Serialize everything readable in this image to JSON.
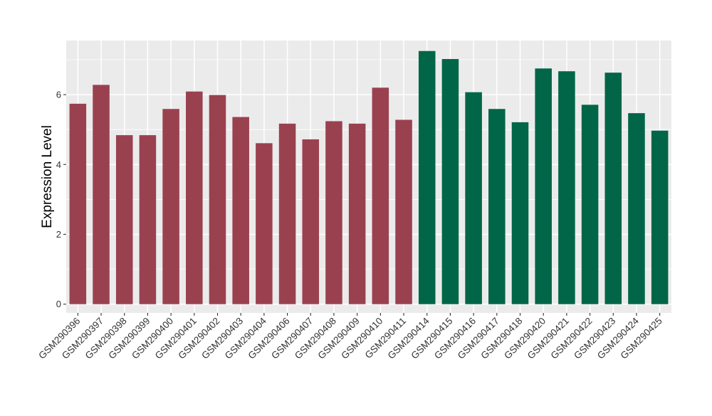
{
  "chart_data": {
    "type": "bar",
    "title": "",
    "xlabel": "",
    "ylabel": "Expression Level",
    "ylim": [
      -0.25,
      7.55
    ],
    "yticks": [
      0,
      2,
      4,
      6
    ],
    "grid": true,
    "legend": "none",
    "categories": [
      "GSM290396",
      "GSM290397",
      "GSM290398",
      "GSM290399",
      "GSM290400",
      "GSM290401",
      "GSM290402",
      "GSM290403",
      "GSM290404",
      "GSM290406",
      "GSM290407",
      "GSM290408",
      "GSM290409",
      "GSM290410",
      "GSM290411",
      "GSM290414",
      "GSM290415",
      "GSM290416",
      "GSM290417",
      "GSM290418",
      "GSM290420",
      "GSM290421",
      "GSM290422",
      "GSM290423",
      "GSM290424",
      "GSM290425"
    ],
    "values": [
      5.74,
      6.28,
      4.84,
      4.84,
      5.59,
      6.09,
      5.99,
      5.36,
      4.61,
      5.17,
      4.72,
      5.24,
      5.17,
      6.2,
      5.28,
      7.25,
      7.02,
      6.07,
      5.59,
      5.21,
      6.75,
      6.67,
      5.71,
      6.63,
      5.47,
      4.97
    ],
    "group_colors": [
      "#9a4150",
      "#9a4150",
      "#9a4150",
      "#9a4150",
      "#9a4150",
      "#9a4150",
      "#9a4150",
      "#9a4150",
      "#9a4150",
      "#9a4150",
      "#9a4150",
      "#9a4150",
      "#9a4150",
      "#9a4150",
      "#9a4150",
      "#006647",
      "#006647",
      "#006647",
      "#006647",
      "#006647",
      "#006647",
      "#006647",
      "#006647",
      "#006647",
      "#006647",
      "#006647"
    ],
    "panel_background": "#ebebeb",
    "grid_color": "#ffffff"
  }
}
